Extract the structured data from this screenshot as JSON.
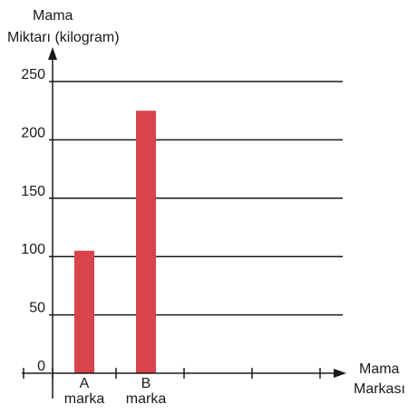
{
  "chart_data": {
    "type": "bar",
    "ylabel_lines": [
      "Mama",
      "Miktarı (kilogram)"
    ],
    "xlabel_lines": [
      "Mama",
      "Markası"
    ],
    "yticks": [
      0,
      50,
      100,
      150,
      200,
      250
    ],
    "ylim": [
      0,
      250
    ],
    "grid": true,
    "bar_color": "#d9434b",
    "categories": [
      {
        "lines": [
          "A",
          "marka"
        ],
        "value": 105
      },
      {
        "lines": [
          "B",
          "marka"
        ],
        "value": 225
      }
    ]
  }
}
